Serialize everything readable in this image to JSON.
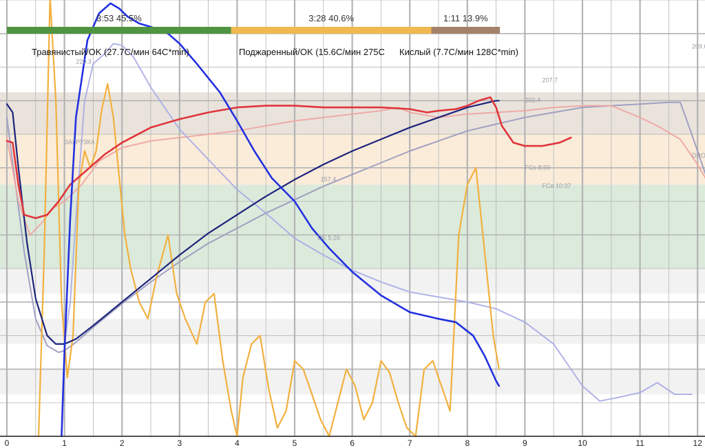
{
  "phases": [
    {
      "duration": "3:53",
      "percent": "45.5%",
      "color": "#4f9441",
      "fraction": 0.455
    },
    {
      "duration": "3:28",
      "percent": "40.6%",
      "color": "#f1b84f",
      "fraction": 0.406
    },
    {
      "duration": "1:11",
      "percent": "13.9%",
      "color": "#a4826a",
      "fraction": 0.139
    }
  ],
  "phase_titles": [
    "Травянистый/OK (27.7C/мин  64C*min)",
    "Поджаренный/OK (15.6C/мин  275C",
    "Кислый (7.7C/мин  128C*min)"
  ],
  "colors": {
    "band_top": "#e9e3dc",
    "band_mid": "#faecd9",
    "band_green": "#dbeadb",
    "band_light": "#f2f2f2",
    "grid": "#b4b4b4",
    "bt": "#1c237a",
    "bt_ref": "#9c9cc0",
    "et": "#e0353a",
    "et_ref": "#efa6a2",
    "ror": "#2230e0",
    "ror_ref": "#a9abe6",
    "ror_et": "#f2b03e"
  },
  "chart_data": {
    "type": "line",
    "title": "",
    "xlabel": "",
    "ylabel": "",
    "xlim": [
      0,
      12.2
    ],
    "ylim": [
      0,
      260
    ],
    "x_ticks": [
      0,
      1,
      2,
      3,
      4,
      5,
      6,
      7,
      8,
      9,
      10,
      11,
      12
    ],
    "grid": true,
    "events": [
      {
        "label": "220.3",
        "x": 1.2,
        "y": 222
      },
      {
        "label": "ЗАГРУЗКА",
        "x": 1.0,
        "y": 174
      },
      {
        "label": "157.4",
        "x": 5.45,
        "y": 152
      },
      {
        "label": "DE 5:26",
        "x": 5.4,
        "y": 117
      },
      {
        "label": "202.4",
        "x": 9.0,
        "y": 199
      },
      {
        "label": "207.7",
        "x": 9.3,
        "y": 211
      },
      {
        "label": "FCs 8:59",
        "x": 9.0,
        "y": 159
      },
      {
        "label": "FCe 10:37",
        "x": 9.3,
        "y": 148
      },
      {
        "label": "209.6",
        "x": 11.9,
        "y": 231
      },
      {
        "label": "DROP",
        "x": 11.9,
        "y": 166
      }
    ],
    "series": [
      {
        "key": "bt_ref",
        "x": [
          0,
          0.15,
          0.3,
          0.5,
          0.7,
          0.9,
          1.0,
          1.2,
          1.5,
          2,
          2.5,
          3,
          3.5,
          4,
          4.5,
          5,
          5.5,
          6,
          6.5,
          7,
          7.5,
          8,
          8.5,
          9,
          9.5,
          10,
          10.5,
          11,
          11.5,
          11.7,
          11.9,
          12.2
        ],
        "y": [
          190,
          150,
          110,
          70,
          54,
          50,
          51,
          56,
          65,
          79,
          92,
          104,
          115,
          124,
          133,
          141,
          149,
          156,
          163,
          170,
          176,
          182,
          186,
          190,
          193,
          196,
          197,
          198,
          199,
          199,
          180,
          150
        ]
      },
      {
        "key": "bt",
        "x": [
          0,
          0.1,
          0.2,
          0.35,
          0.5,
          0.7,
          0.85,
          1.0,
          1.2,
          1.5,
          2,
          2.5,
          3,
          3.5,
          4,
          4.5,
          5,
          5.5,
          6,
          6.5,
          7,
          7.5,
          8,
          8.5,
          8.55
        ],
        "y": [
          198,
          193,
          160,
          115,
          82,
          60,
          55,
          55,
          58,
          66,
          80,
          94,
          108,
          121,
          132,
          143,
          153,
          162,
          170,
          177,
          184,
          190,
          196,
          200,
          200
        ]
      },
      {
        "key": "et_ref",
        "x": [
          0,
          0.2,
          0.4,
          0.6,
          0.8,
          1.0,
          1.3,
          1.6,
          2,
          2.5,
          3,
          3.5,
          4,
          4.5,
          5,
          5.5,
          6,
          6.5,
          6.8,
          7,
          7.5,
          8,
          8.5,
          9,
          9.5,
          10,
          10.5,
          11,
          11.3,
          11.7,
          12,
          12.2
        ],
        "y": [
          178,
          140,
          120,
          127,
          136,
          140,
          150,
          164,
          172,
          176,
          178,
          180,
          182,
          185,
          188,
          190,
          192,
          194,
          196,
          193,
          190,
          192,
          193,
          194,
          196,
          197,
          197,
          190,
          185,
          177,
          162,
          150
        ]
      },
      {
        "key": "et",
        "x": [
          0,
          0.1,
          0.2,
          0.3,
          0.5,
          0.7,
          0.9,
          1.1,
          1.3,
          1.5,
          1.7,
          2,
          2.5,
          3,
          3.5,
          4,
          4.5,
          5,
          5.5,
          6,
          6.5,
          7,
          7.3,
          7.5,
          7.8,
          8,
          8.2,
          8.4,
          8.5,
          8.6,
          8.8,
          9.0,
          9.3,
          9.6,
          9.8
        ],
        "y": [
          176,
          175,
          150,
          132,
          130,
          132,
          140,
          150,
          156,
          162,
          168,
          175,
          184,
          189,
          193,
          196,
          197,
          197,
          196,
          196,
          196,
          195,
          193,
          194,
          195,
          197,
          200,
          202,
          196,
          185,
          175,
          173,
          173,
          175,
          178
        ]
      },
      {
        "key": "ror_ref",
        "x": [
          1.0,
          1.1,
          1.2,
          1.35,
          1.5,
          1.7,
          1.85,
          2.0,
          2.2,
          2.5,
          3,
          3.5,
          4,
          4.5,
          5,
          5.5,
          6,
          6.5,
          7,
          7.5,
          8,
          8.5,
          9,
          9.5,
          10,
          10.3,
          10.6,
          11,
          11.3,
          11.6,
          11.9
        ],
        "y": [
          55,
          80,
          130,
          200,
          222,
          228,
          234,
          233,
          226,
          208,
          183,
          165,
          147,
          133,
          118,
          108,
          99,
          92,
          86,
          83,
          80,
          76,
          68,
          55,
          30,
          21,
          23,
          26,
          32,
          25,
          25
        ]
      },
      {
        "key": "ror",
        "x": [
          0.95,
          1.0,
          1.1,
          1.2,
          1.4,
          1.6,
          1.8,
          1.95,
          2.1,
          2.3,
          2.5,
          2.8,
          3.0,
          3.3,
          3.7,
          4.0,
          4.3,
          4.6,
          5.0,
          5.3,
          5.6,
          6.0,
          6.5,
          7.0,
          7.5,
          7.8,
          8.1,
          8.3,
          8.5,
          8.55
        ],
        "y": [
          0,
          50,
          130,
          190,
          236,
          252,
          258,
          255,
          250,
          246,
          244,
          240,
          234,
          222,
          205,
          188,
          170,
          154,
          140,
          124,
          112,
          98,
          84,
          74,
          70,
          68,
          60,
          48,
          33,
          30
        ]
      },
      {
        "key": "ror_et",
        "x": [
          0.55,
          0.65,
          0.75,
          0.85,
          0.95,
          1.05,
          1.15,
          1.25,
          1.35,
          1.45,
          1.55,
          1.65,
          1.75,
          1.85,
          1.95,
          2.05,
          2.15,
          2.3,
          2.45,
          2.6,
          2.8,
          2.95,
          3.1,
          3.3,
          3.45,
          3.6,
          3.75,
          3.9,
          4.0,
          4.1,
          4.25,
          4.4,
          4.55,
          4.7,
          4.85,
          5.0,
          5.15,
          5.3,
          5.45,
          5.6,
          5.75,
          5.9,
          6.05,
          6.2,
          6.35,
          6.5,
          6.65,
          6.8,
          6.95,
          7.1,
          7.25,
          7.4,
          7.55,
          7.7,
          7.85,
          8.0,
          8.15,
          8.3,
          8.45,
          8.55
        ],
        "y": [
          0,
          110,
          262,
          200,
          80,
          35,
          60,
          150,
          170,
          160,
          170,
          195,
          210,
          190,
          155,
          120,
          100,
          80,
          70,
          95,
          120,
          85,
          70,
          55,
          80,
          85,
          45,
          15,
          0,
          35,
          55,
          60,
          28,
          5,
          15,
          45,
          40,
          25,
          10,
          0,
          20,
          40,
          30,
          10,
          20,
          45,
          38,
          20,
          5,
          0,
          40,
          45,
          30,
          15,
          120,
          150,
          160,
          110,
          60,
          40
        ]
      }
    ]
  }
}
